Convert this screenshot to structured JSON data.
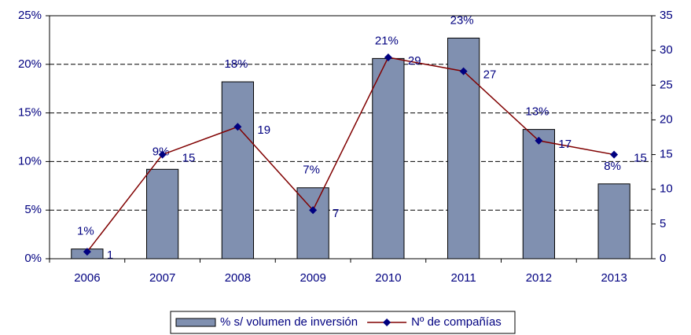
{
  "chart_data": {
    "type": "bar",
    "categories": [
      "2006",
      "2007",
      "2008",
      "2009",
      "2010",
      "2011",
      "2012",
      "2013"
    ],
    "series": [
      {
        "name": "% s/ volumen de inversión",
        "type": "bar",
        "color": "#8090b0",
        "values": [
          1,
          9.2,
          18.2,
          7.3,
          20.6,
          22.7,
          13.3,
          7.7
        ],
        "value_labels": [
          "1%",
          "9%",
          "18%",
          "7%",
          "21%",
          "23%",
          "13%",
          "8%"
        ]
      },
      {
        "name": "Nº de compañías",
        "type": "line",
        "axis": "y2",
        "color": "#800000",
        "marker_color": "#000080",
        "values": [
          1,
          15,
          19,
          7,
          29,
          27,
          17,
          15
        ]
      }
    ],
    "ylim": [
      0,
      25
    ],
    "yticks": [
      {
        "value": 0,
        "label": "0%"
      },
      {
        "value": 5,
        "label": "5%"
      },
      {
        "value": 10,
        "label": "10%"
      },
      {
        "value": 15,
        "label": "15%"
      },
      {
        "value": 20,
        "label": "20%"
      },
      {
        "value": 25,
        "label": "25%"
      }
    ],
    "y2lim": [
      0,
      35
    ],
    "y2ticks": [
      0,
      5,
      10,
      15,
      20,
      25,
      30,
      35
    ],
    "grid": true,
    "legend": "bottom"
  }
}
